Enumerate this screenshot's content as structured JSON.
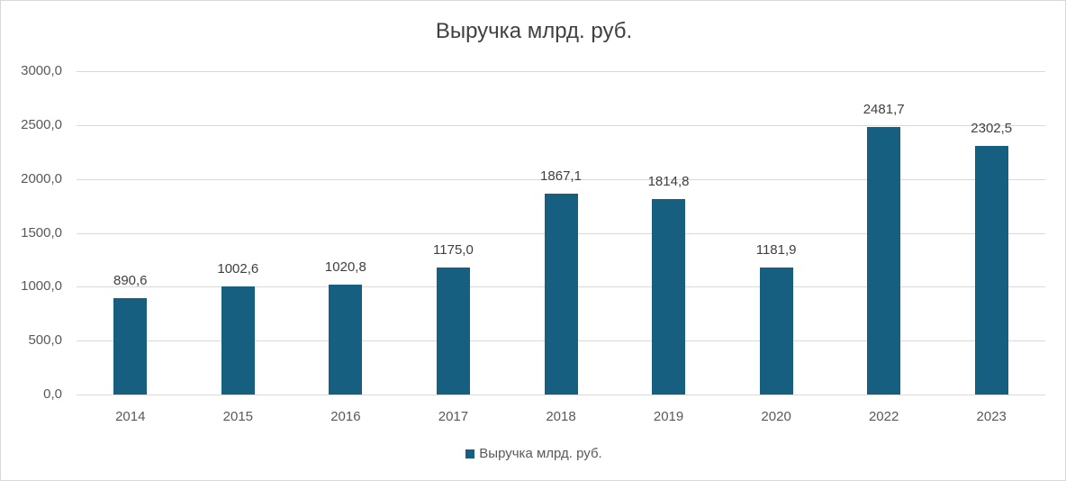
{
  "chart_data": {
    "type": "bar",
    "title": "Выручка млрд. руб.",
    "categories": [
      "2014",
      "2015",
      "2016",
      "2017",
      "2018",
      "2019",
      "2020",
      "2022",
      "2023"
    ],
    "series": [
      {
        "name": "Выручка млрд. руб.",
        "values": [
          890.6,
          1002.6,
          1020.8,
          1175.0,
          1867.1,
          1814.8,
          1181.9,
          2481.7,
          2302.5
        ],
        "labels": [
          "890,6",
          "1002,6",
          "1020,8",
          "1175,0",
          "1867,1",
          "1814,8",
          "1181,9",
          "2481,7",
          "2302,5"
        ],
        "color": "#165f80"
      }
    ],
    "xlabel": "",
    "ylabel": "",
    "ylim": [
      0,
      3000
    ],
    "yticks": [
      "0,0",
      "500,0",
      "1000,0",
      "1500,0",
      "2000,0",
      "2500,0",
      "3000,0"
    ],
    "grid": true,
    "legend_position": "bottom"
  }
}
